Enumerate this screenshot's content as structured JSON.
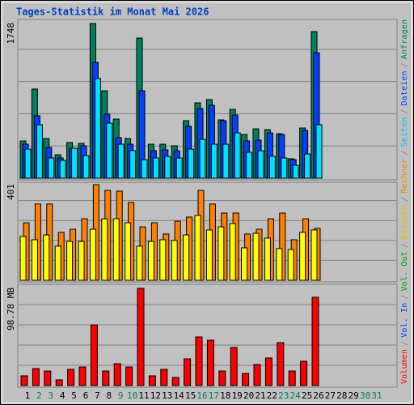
{
  "legend_separator": "/",
  "chart_data": [
    {
      "type": "bar",
      "title": "Tages-Statistik im Monat Mai 2026",
      "categories": [
        "1",
        "2",
        "3",
        "4",
        "5",
        "6",
        "7",
        "8",
        "9",
        "10",
        "11",
        "12",
        "13",
        "14",
        "15",
        "16",
        "17",
        "18",
        "19",
        "20",
        "21",
        "22",
        "23",
        "24",
        "25",
        "26",
        "27",
        "28",
        "29",
        "30",
        "31"
      ],
      "category_colors": [
        "#000000",
        "#00805c",
        "#00805c",
        "#000000",
        "#000000",
        "#000000",
        "#000000",
        "#000000",
        "#00805c",
        "#00805c",
        "#000000",
        "#000000",
        "#000000",
        "#000000",
        "#000000",
        "#00805c",
        "#00805c",
        "#000000",
        "#000000",
        "#000000",
        "#000000",
        "#000000",
        "#00805c",
        "#00805c",
        "#000000",
        "#000000",
        "#000000",
        "#000000",
        "#000000",
        "#00805c",
        "#00805c"
      ],
      "ylim": [
        0,
        1748
      ],
      "yticks": [
        1748
      ],
      "series": [
        {
          "name": "Seiten",
          "color": "#00e0ff",
          "label_color": "#00c0ff",
          "values": [
            329,
            604,
            229,
            201,
            339,
            256,
            1126,
            622,
            384,
            311,
            210,
            229,
            247,
            229,
            329,
            439,
            384,
            384,
            512,
            293,
            311,
            247,
            229,
            146,
            274,
            604,
            0,
            0,
            0,
            0,
            0
          ]
        },
        {
          "name": "Dateien",
          "color": "#0040ff",
          "label_color": "#0040ff",
          "values": [
            384,
            705,
            348,
            229,
            339,
            366,
            1309,
            723,
            458,
            384,
            988,
            311,
            320,
            311,
            586,
            787,
            824,
            650,
            714,
            421,
            430,
            512,
            494,
            210,
            540,
            1418,
            0,
            0,
            0,
            0,
            0
          ]
        },
        {
          "name": "Anfragen",
          "color": "#00805c",
          "label_color": "#00805c",
          "values": [
            421,
            1007,
            448,
            265,
            403,
            393,
            1748,
            988,
            668,
            448,
            1583,
            384,
            384,
            366,
            650,
            851,
            888,
            659,
            778,
            494,
            558,
            549,
            503,
            220,
            567,
            1656,
            0,
            0,
            0,
            0,
            0
          ]
        }
      ]
    },
    {
      "type": "bar",
      "ylim": [
        0,
        401
      ],
      "yticks": [
        401
      ],
      "series": [
        {
          "name": "Besuche",
          "color": "#ffff00",
          "label_color": "#e0c000",
          "values": [
            184,
            170,
            190,
            143,
            163,
            163,
            214,
            258,
            258,
            241,
            143,
            163,
            170,
            167,
            190,
            272,
            211,
            224,
            238,
            136,
            197,
            177,
            133,
            129,
            201,
            211,
            0,
            0,
            0,
            0,
            0
          ]
        },
        {
          "name": "Rechner",
          "color": "#ff8000",
          "label_color": "#ff8000",
          "values": [
            241,
            320,
            320,
            201,
            214,
            258,
            401,
            377,
            374,
            326,
            224,
            241,
            194,
            248,
            265,
            377,
            320,
            282,
            282,
            194,
            214,
            258,
            282,
            170,
            258,
            218,
            0,
            0,
            0,
            0,
            0
          ]
        }
      ]
    },
    {
      "type": "bar",
      "ylim": [
        0,
        98.78
      ],
      "yticks": [
        {
          "value": 98.78,
          "label": "98.78 MB"
        }
      ],
      "series": [
        {
          "name": "Volumen",
          "color": "#ff0000",
          "label_color": "#ff0000",
          "values": [
            9.9,
            17.3,
            14.8,
            5.8,
            16.5,
            18.9,
            61.7,
            14.8,
            22.2,
            18.9,
            98.78,
            9.9,
            16.5,
            8.2,
            27.2,
            49.4,
            46.1,
            14.8,
            38.7,
            12.3,
            21.4,
            28.0,
            43.6,
            14.8,
            24.7,
            89.7,
            0,
            0,
            0,
            0,
            0
          ]
        },
        {
          "name": "Vol. In",
          "label_color": "#0040ff"
        },
        {
          "name": "Vol. Out",
          "label_color": "#00a000"
        }
      ]
    }
  ]
}
